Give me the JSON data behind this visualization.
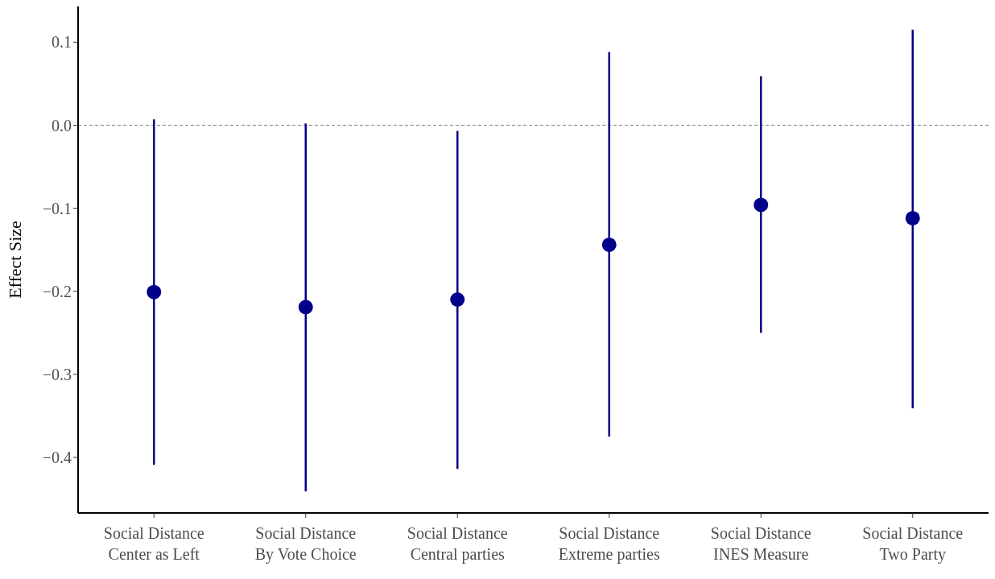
{
  "chart_data": {
    "type": "scatter",
    "ylabel": "Effect Size",
    "categories": [
      "Social Distance\nCenter as Left",
      "Social Distance\nBy Vote Choice",
      "Social Distance\nCentral parties",
      "Social Distance\nExtreme parties",
      "Social Distance\nINES Measure",
      "Social Distance\nTwo Party"
    ],
    "series": [
      {
        "color": "#00008b",
        "values": [
          -0.201,
          -0.219,
          -0.21,
          -0.144,
          -0.096,
          -0.112
        ],
        "errors": [
          [
            -0.409,
            0.007
          ],
          [
            -0.441,
            0.002
          ],
          [
            -0.414,
            -0.007
          ],
          [
            -0.375,
            0.088
          ],
          [
            -0.25,
            0.059
          ],
          [
            -0.341,
            0.115
          ]
        ]
      }
    ],
    "ylim": [
      -0.467,
      0.143
    ],
    "yticks": [
      -0.4,
      -0.3,
      -0.2,
      -0.1,
      {
        "value": 0,
        "label": "0.0"
      },
      0.1
    ],
    "ref_lines": [
      {
        "axis": "y",
        "value": 0,
        "color": "#808080",
        "line_style": "dashed"
      }
    ],
    "marker": "circle",
    "grid": false,
    "legend": false
  }
}
